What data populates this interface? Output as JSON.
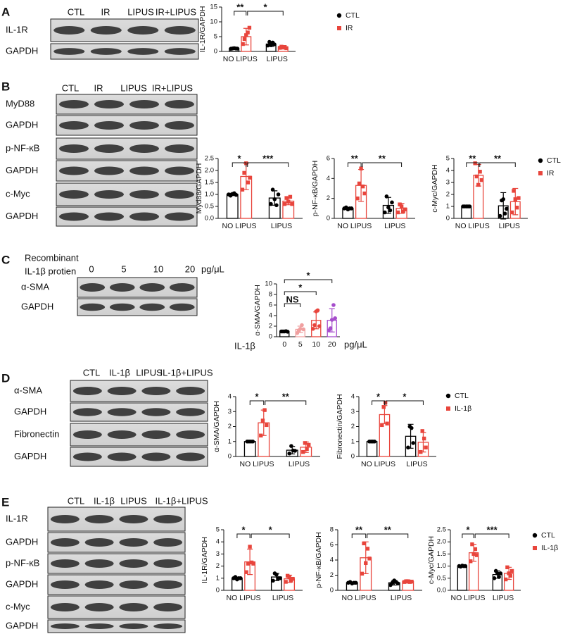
{
  "panels": [
    {
      "letter": "A",
      "lanes": [
        "CTL",
        "IR",
        "LIPUS",
        "IR+LIPUS"
      ],
      "rows": [
        "IL-1R",
        "GAPDH"
      ]
    },
    {
      "letter": "B",
      "lanes": [
        "CTL",
        "IR",
        "LIPUS",
        "IR+LIPUS"
      ],
      "rows": [
        "MyD88",
        "GAPDH",
        "p-NF-κB",
        "GAPDH",
        "c-Myc",
        "GAPDH"
      ]
    },
    {
      "letter": "C",
      "header": [
        "Recombinant",
        "IL-1β protien"
      ],
      "lanes": [
        "0",
        "5",
        "10",
        "20"
      ],
      "unit": "pg/μL",
      "rows": [
        "α-SMA",
        "GAPDH"
      ]
    },
    {
      "letter": "D",
      "lanes": [
        "CTL",
        "IL-1β",
        "LIPUS",
        "IL-1β+LIPUS"
      ],
      "rows": [
        "α-SMA",
        "GAPDH",
        "Fibronectin",
        "GAPDH"
      ]
    },
    {
      "letter": "E",
      "lanes": [
        "CTL",
        "IL-1β",
        "LIPUS",
        "IL-1β+LIPUS"
      ],
      "rows": [
        "IL-1R",
        "GAPDH",
        "p-NF-κB",
        "GAPDH",
        "c-Myc",
        "GAPDH"
      ]
    }
  ],
  "chart_data": [
    {
      "type": "bar",
      "ylabel": "IL-1R/GAPDH",
      "ylim": [
        0,
        15
      ],
      "yticks": [
        0,
        5,
        10,
        15
      ],
      "categories": [
        "NO LIPUS",
        "LIPUS"
      ],
      "legend": true,
      "significance": [
        "**",
        "*"
      ],
      "series": [
        {
          "name": "CTL",
          "color": "#000000",
          "values": [
            1,
            2.5
          ],
          "errors": [
            0.2,
            0.8
          ],
          "points": [
            [
              0.9,
              1,
              1.1,
              1,
              0.95
            ],
            [
              2,
              3.2,
              2.1,
              3,
              2.4
            ]
          ]
        },
        {
          "name": "IR",
          "color": "#e8453c",
          "values": [
            5,
            1.4
          ],
          "errors": [
            2.8,
            0.4
          ],
          "points": [
            [
              2.5,
              4.2,
              5.5,
              6.4,
              8
            ],
            [
              1.2,
              1.6,
              1.3,
              1.5,
              1.1
            ]
          ]
        }
      ]
    },
    {
      "type": "bar",
      "ylabel": "Myd88/GAPDH",
      "ylim": [
        0,
        2.5
      ],
      "yticks": [
        {
          "value": 0,
          "label": "0.0"
        },
        {
          "value": 0.5,
          "label": "0.5"
        },
        {
          "value": 1,
          "label": "1.0"
        },
        {
          "value": 1.5,
          "label": "1.5"
        },
        {
          "value": 2,
          "label": "2.0"
        },
        {
          "value": 2.5,
          "label": "2.5"
        }
      ],
      "categories": [
        "NO LIPUS",
        "LIPUS"
      ],
      "legend": false,
      "significance": [
        "*",
        "***"
      ],
      "series": [
        {
          "name": "CTL",
          "color": "#000000",
          "values": [
            1,
            0.85
          ],
          "errors": [
            0.05,
            0.3
          ],
          "points": [
            [
              1,
              0.95,
              1.02,
              1.05,
              0.98
            ],
            [
              0.6,
              1.2,
              0.8,
              0.55,
              1.0
            ]
          ]
        },
        {
          "name": "IR",
          "color": "#e8453c",
          "values": [
            1.75,
            0.72
          ],
          "errors": [
            0.55,
            0.15
          ],
          "points": [
            [
              1.2,
              1.9,
              2.3,
              1.5,
              1.7
            ],
            [
              0.6,
              0.85,
              0.7,
              0.9,
              0.6
            ]
          ]
        }
      ]
    },
    {
      "type": "bar",
      "ylabel": "p-NF-κB/GAPDH",
      "ylim": [
        0,
        6
      ],
      "yticks": [
        0,
        2,
        4,
        6
      ],
      "categories": [
        "NO LIPUS",
        "LIPUS"
      ],
      "legend": false,
      "significance": [
        "**",
        "**"
      ],
      "series": [
        {
          "name": "CTL",
          "color": "#000000",
          "values": [
            1,
            1.3
          ],
          "errors": [
            0.1,
            0.8
          ],
          "points": [
            [
              1,
              1.1,
              0.9,
              1,
              1
            ],
            [
              0.6,
              2.2,
              1.1,
              0.8,
              1.6
            ]
          ]
        },
        {
          "name": "IR",
          "color": "#e8453c",
          "values": [
            3.3,
            1.0
          ],
          "errors": [
            1.6,
            0.5
          ],
          "points": [
            [
              2,
              3.5,
              5,
              3.2,
              2.5
            ],
            [
              0.6,
              1.4,
              1.2,
              0.7,
              0.9
            ]
          ]
        }
      ]
    },
    {
      "type": "bar",
      "ylabel": "c-Myc/GAPDH",
      "ylim": [
        0,
        5
      ],
      "yticks": [
        0,
        1,
        2,
        3,
        4,
        5
      ],
      "categories": [
        "NO LIPUS",
        "LIPUS"
      ],
      "legend": true,
      "significance": [
        "**",
        "**"
      ],
      "series": [
        {
          "name": "CTL",
          "color": "#000000",
          "values": [
            1,
            1.05
          ],
          "errors": [
            0.05,
            1.1
          ],
          "points": [
            [
              1,
              1,
              1,
              1,
              1
            ],
            [
              0.2,
              1.5,
              1.6,
              0.4,
              0.8
            ]
          ]
        },
        {
          "name": "IR",
          "color": "#e8453c",
          "values": [
            3.6,
            1.4
          ],
          "errors": [
            0.9,
            1.1
          ],
          "points": [
            [
              4.6,
              3.5,
              2.8,
              3.9,
              3.2
            ],
            [
              0.5,
              2.3,
              1.6,
              0.9,
              1.7
            ]
          ]
        }
      ]
    },
    {
      "type": "dosebar",
      "ylabel": "α-SMA/GAPDH",
      "xlabel": "IL-1β",
      "xunit": "pg/μL",
      "ylim": [
        0,
        10
      ],
      "yticks": [
        0,
        2,
        4,
        6,
        8,
        10
      ],
      "categories": [
        "0",
        "5",
        "10",
        "20"
      ],
      "significance": [
        "NS",
        "*",
        "*"
      ],
      "colors": [
        "#000000",
        "#f0a0a0",
        "#e8453c",
        "#a64dcc"
      ],
      "values": [
        1,
        1.4,
        3.1,
        3.1
      ],
      "errors": [
        0.1,
        0.6,
        1.6,
        2.2
      ],
      "points": [
        [
          1,
          1,
          1,
          1.05,
          0.95
        ],
        [
          0.7,
          1.2,
          1.5,
          2.2,
          1.4
        ],
        [
          1.5,
          2.2,
          4.8,
          5.0,
          2.0
        ],
        [
          1.2,
          1.6,
          3.2,
          6.0,
          3.5
        ]
      ]
    },
    {
      "type": "bar",
      "ylabel": "α-SMA/GAPDH",
      "ylim": [
        0,
        4
      ],
      "yticks": [
        0,
        1,
        2,
        3,
        4
      ],
      "categories": [
        "NO LIPUS",
        "LIPUS"
      ],
      "legend": false,
      "significance": [
        "*",
        "**"
      ],
      "series": [
        {
          "name": "CTL",
          "color": "#000000",
          "values": [
            1,
            0.42
          ],
          "errors": [
            0,
            0.25
          ],
          "points": [
            [
              1,
              1,
              1,
              1
            ],
            [
              0.2,
              0.7,
              0.4,
              0.38
            ]
          ]
        },
        {
          "name": "IL-1β",
          "color": "#e8453c",
          "values": [
            2.25,
            0.62
          ],
          "errors": [
            0.85,
            0.35
          ],
          "points": [
            [
              1.4,
              2.4,
              3.1,
              2.1
            ],
            [
              0.3,
              0.9,
              0.5,
              0.78
            ]
          ]
        }
      ]
    },
    {
      "type": "bar",
      "ylabel": "Fibronectin/GAPDH",
      "ylim": [
        0,
        4
      ],
      "yticks": [
        0,
        1,
        2,
        3,
        4
      ],
      "categories": [
        "NO LIPUS",
        "LIPUS"
      ],
      "legend": true,
      "significance": [
        "*",
        "*"
      ],
      "series": [
        {
          "name": "CTL",
          "color": "#000000",
          "values": [
            1,
            1.35
          ],
          "errors": [
            0,
            0.8
          ],
          "points": [
            [
              1,
              1,
              1,
              1
            ],
            [
              0.6,
              2,
              1.9,
              0.9
            ]
          ]
        },
        {
          "name": "IL-1β",
          "color": "#e8453c",
          "values": [
            2.8,
            0.95
          ],
          "errors": [
            0.6,
            0.65
          ],
          "points": [
            [
              2.1,
              3.3,
              3.6,
              2.2
            ],
            [
              0.3,
              1.7,
              1.2,
              0.6
            ]
          ]
        }
      ]
    },
    {
      "type": "bar",
      "ylabel": "IL-1R/GAPDH",
      "ylim": [
        0,
        5
      ],
      "yticks": [
        0,
        1,
        2,
        3,
        4,
        5
      ],
      "categories": [
        "NO LIPUS",
        "LIPUS"
      ],
      "legend": false,
      "significance": [
        "*",
        "*"
      ],
      "series": [
        {
          "name": "CTL",
          "color": "#000000",
          "values": [
            1,
            1.1
          ],
          "errors": [
            0.1,
            0.3
          ],
          "points": [
            [
              1,
              1.1,
              0.9,
              1.0,
              1.0
            ],
            [
              0.8,
              1.4,
              1.3,
              1.0,
              1.0
            ]
          ]
        },
        {
          "name": "IL-1β",
          "color": "#e8453c",
          "values": [
            2.35,
            0.95
          ],
          "errors": [
            1.05,
            0.3
          ],
          "points": [
            [
              1.5,
              2.2,
              3.6,
              2.3,
              2.2
            ],
            [
              0.7,
              1.2,
              1.1,
              0.8,
              0.95
            ]
          ]
        }
      ]
    },
    {
      "type": "bar",
      "ylabel": "p-NF-κB/GAPDH",
      "ylim": [
        0,
        8
      ],
      "yticks": [
        0,
        2,
        4,
        6,
        8
      ],
      "categories": [
        "NO LIPUS",
        "LIPUS"
      ],
      "legend": false,
      "significance": [
        "**",
        "**"
      ],
      "series": [
        {
          "name": "CTL",
          "color": "#000000",
          "values": [
            1,
            1.0
          ],
          "errors": [
            0.1,
            0.3
          ],
          "points": [
            [
              1,
              1.1,
              0.9,
              1.0,
              1.0
            ],
            [
              0.7,
              1.0,
              1.3,
              1.1,
              0.9
            ]
          ]
        },
        {
          "name": "IL-1β",
          "color": "#e8453c",
          "values": [
            4.3,
            1.15
          ],
          "errors": [
            2.1,
            0.2
          ],
          "points": [
            [
              2.2,
              6.2,
              3.6,
              5.5,
              4.2
            ],
            [
              1.1,
              1.2,
              1.2,
              1.1,
              1.15
            ]
          ]
        }
      ]
    },
    {
      "type": "bar",
      "ylabel": "c-Myc/GAPDH",
      "ylim": [
        0,
        2.5
      ],
      "yticks": [
        {
          "value": 0,
          "label": "0.0"
        },
        {
          "value": 0.5,
          "label": "0.5"
        },
        {
          "value": 1,
          "label": "1.0"
        },
        {
          "value": 1.5,
          "label": "1.5"
        },
        {
          "value": 2,
          "label": "2.0"
        },
        {
          "value": 2.5,
          "label": "2.5"
        }
      ],
      "categories": [
        "NO LIPUS",
        "LIPUS"
      ],
      "legend": true,
      "significance": [
        "*",
        "***"
      ],
      "series": [
        {
          "name": "CTL",
          "color": "#000000",
          "values": [
            1,
            0.65
          ],
          "errors": [
            0.03,
            0.15
          ],
          "points": [
            [
              1,
              0.98,
              1.02,
              1.0,
              1.0
            ],
            [
              0.5,
              0.8,
              0.7,
              0.55,
              0.7
            ]
          ]
        },
        {
          "name": "IL-1β",
          "color": "#e8453c",
          "values": [
            1.55,
            0.7
          ],
          "errors": [
            0.35,
            0.25
          ],
          "points": [
            [
              1.2,
              1.9,
              1.5,
              1.7,
              1.45
            ],
            [
              0.45,
              0.95,
              0.7,
              0.6,
              0.8
            ]
          ]
        }
      ]
    }
  ]
}
